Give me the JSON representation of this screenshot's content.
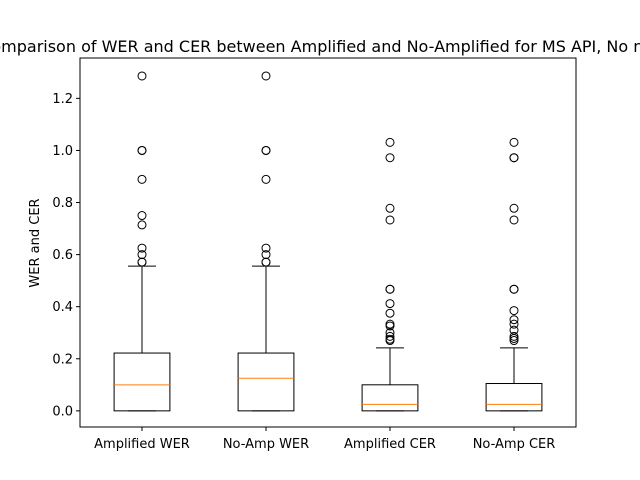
{
  "chart_data": {
    "type": "box",
    "title": "Comparison of WER and CER between Amplified and No-Amplified for MS API, No noise",
    "xlabel": "",
    "ylabel": "WER and CER",
    "ylim": [
      -0.062,
      1.355
    ],
    "yticks": [
      0.0,
      0.2,
      0.4,
      0.6,
      0.8,
      1.0,
      1.2
    ],
    "ytick_labels": [
      "0.0",
      "0.2",
      "0.4",
      "0.6",
      "0.8",
      "1.0",
      "1.2"
    ],
    "grid": false,
    "categories": [
      "Amplified WER",
      "No-Amp WER",
      "Amplified CER",
      "No-Amp CER"
    ],
    "boxes": [
      {
        "label": "Amplified WER",
        "q1": 0.0,
        "median": 0.1,
        "q3": 0.222,
        "whisker_low": 0.0,
        "whisker_high": 0.556,
        "outliers": [
          1.286,
          1.0,
          1.0,
          0.889,
          0.75,
          0.714,
          0.625,
          0.6,
          0.571,
          0.571
        ]
      },
      {
        "label": "No-Amp WER",
        "q1": 0.0,
        "median": 0.125,
        "q3": 0.222,
        "whisker_low": 0.0,
        "whisker_high": 0.556,
        "outliers": [
          1.286,
          1.0,
          1.0,
          0.889,
          0.625,
          0.6,
          0.571,
          0.571
        ]
      },
      {
        "label": "Amplified CER",
        "q1": 0.0,
        "median": 0.025,
        "q3": 0.1,
        "whisker_low": 0.0,
        "whisker_high": 0.242,
        "outliers": [
          1.031,
          0.972,
          0.778,
          0.733,
          0.467,
          0.467,
          0.412,
          0.375,
          0.333,
          0.326,
          0.3,
          0.286,
          0.275,
          0.27
        ]
      },
      {
        "label": "No-Amp CER",
        "q1": 0.0,
        "median": 0.025,
        "q3": 0.105,
        "whisker_low": 0.0,
        "whisker_high": 0.242,
        "outliers": [
          1.031,
          0.972,
          0.972,
          0.778,
          0.733,
          0.467,
          0.467,
          0.385,
          0.35,
          0.333,
          0.31,
          0.286,
          0.278,
          0.27
        ]
      }
    ],
    "colors": {
      "box": "#000000",
      "median": "#ff7f0e",
      "outlier": "#000000",
      "background": "#ffffff"
    }
  }
}
